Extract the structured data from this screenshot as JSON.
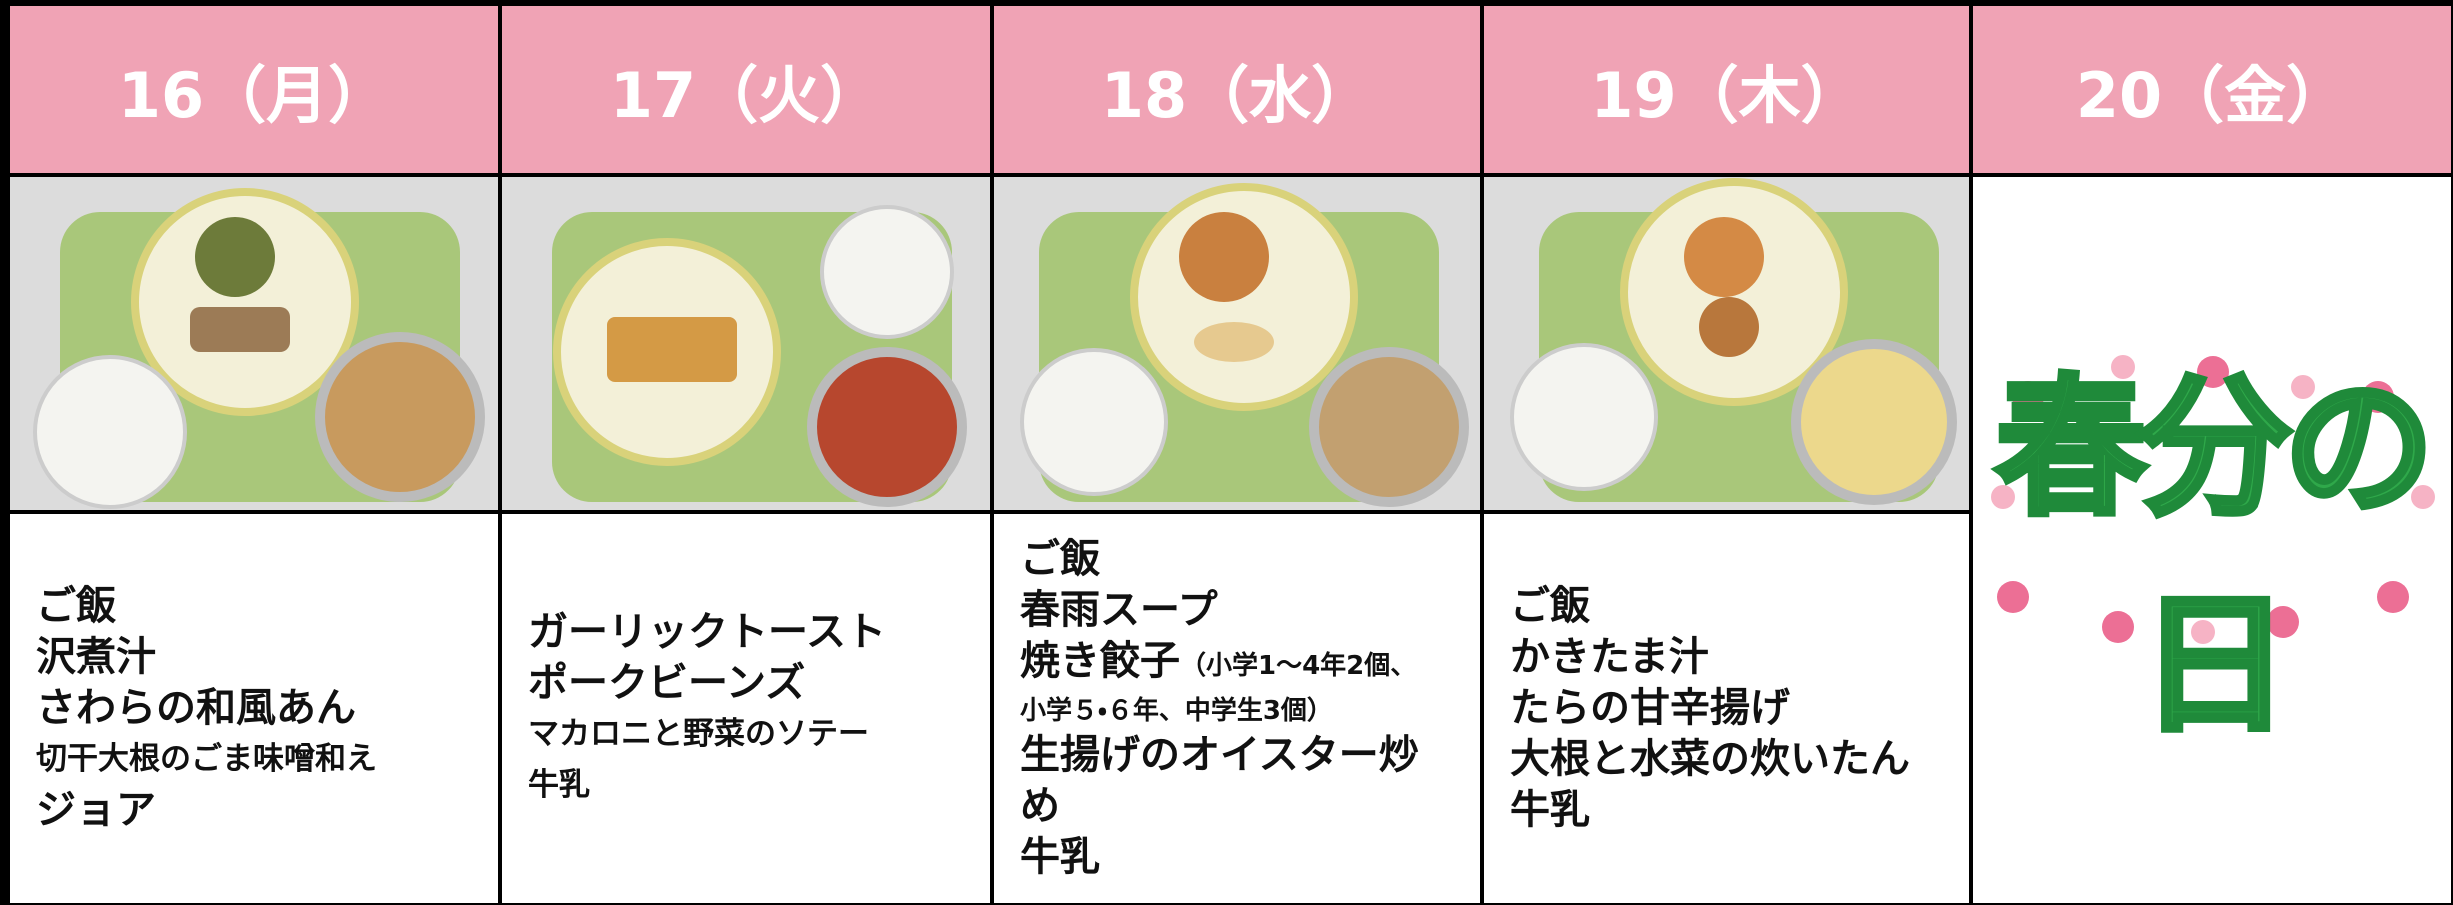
{
  "days": [
    {
      "header": "16（月）",
      "menu": [
        "ご飯",
        "沢煮汁",
        "さわらの和風あん",
        "切干大根のごま味噌和え",
        "ジョア"
      ]
    },
    {
      "header": "17（火）",
      "menu": [
        "ガーリックトースト",
        "ポークビーンズ",
        "マカロニと野菜のソテー",
        "牛乳"
      ]
    },
    {
      "header": "18（水）",
      "menu": [
        "ご飯",
        "春雨スープ",
        "焼き餃子",
        "生揚げのオイスター炒め",
        "牛乳"
      ],
      "note": [
        "（小学1～4年2個、",
        "小学５・６年、中学生3個）"
      ]
    },
    {
      "header": "19（木）",
      "menu": [
        "ご飯",
        "かきたま汁",
        "たらの甘辛揚げ",
        "大根と水菜の炊いたん",
        "牛乳"
      ]
    },
    {
      "header": "20（金）",
      "holiday": "春分の日"
    }
  ]
}
